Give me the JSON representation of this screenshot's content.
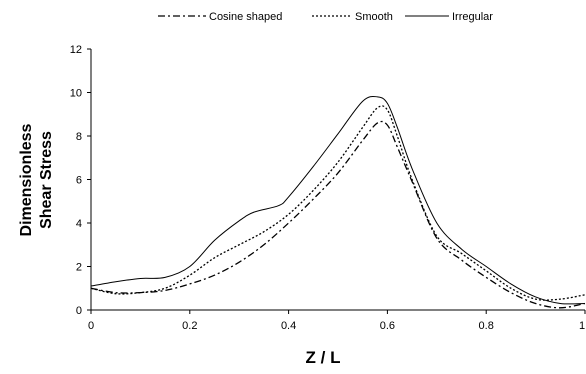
{
  "chart_data": {
    "type": "line",
    "xlabel": "Z / L",
    "ylabel_lines": [
      "Dimensionless",
      "Shear Stress"
    ],
    "xlim": [
      0,
      1
    ],
    "ylim": [
      0,
      12
    ],
    "x_ticks": [
      "0",
      "0.2",
      "0.4",
      "0.6",
      "0.8",
      "1"
    ],
    "y_ticks": [
      "0",
      "2",
      "4",
      "6",
      "8",
      "10",
      "12"
    ],
    "grid": false,
    "legend_position": "top",
    "series": [
      {
        "name": "Cosine shaped",
        "line_style": "dash-dot",
        "color": "#000000",
        "x": [
          0,
          0.05,
          0.1,
          0.15,
          0.2,
          0.25,
          0.3,
          0.35,
          0.4,
          0.45,
          0.5,
          0.55,
          0.58,
          0.6,
          0.62,
          0.65,
          0.7,
          0.75,
          0.8,
          0.85,
          0.9,
          0.95,
          1.0
        ],
        "y": [
          1.0,
          0.8,
          0.8,
          0.9,
          1.2,
          1.6,
          2.2,
          3.0,
          4.0,
          5.1,
          6.3,
          7.8,
          8.6,
          8.5,
          7.5,
          5.9,
          3.3,
          2.3,
          1.5,
          0.8,
          0.3,
          0.1,
          0.3
        ]
      },
      {
        "name": "Smooth",
        "line_style": "dotted",
        "color": "#000000",
        "x": [
          0,
          0.05,
          0.1,
          0.15,
          0.2,
          0.25,
          0.3,
          0.35,
          0.4,
          0.45,
          0.5,
          0.55,
          0.58,
          0.6,
          0.62,
          0.65,
          0.7,
          0.75,
          0.8,
          0.85,
          0.9,
          0.95,
          1.0
        ],
        "y": [
          1.0,
          0.75,
          0.8,
          1.0,
          1.6,
          2.4,
          3.0,
          3.6,
          4.4,
          5.5,
          6.8,
          8.4,
          9.3,
          9.2,
          8.0,
          6.0,
          3.4,
          2.6,
          1.8,
          1.0,
          0.5,
          0.5,
          0.7
        ]
      },
      {
        "name": "Irregular",
        "line_style": "solid",
        "color": "#000000",
        "x": [
          0,
          0.05,
          0.1,
          0.15,
          0.2,
          0.25,
          0.3,
          0.33,
          0.38,
          0.4,
          0.45,
          0.5,
          0.55,
          0.58,
          0.6,
          0.62,
          0.65,
          0.7,
          0.75,
          0.8,
          0.85,
          0.9,
          0.95,
          1.0
        ],
        "y": [
          1.1,
          1.3,
          1.45,
          1.5,
          2.0,
          3.2,
          4.1,
          4.5,
          4.8,
          5.2,
          6.6,
          8.1,
          9.6,
          9.8,
          9.5,
          8.4,
          6.5,
          4.0,
          2.8,
          2.0,
          1.2,
          0.6,
          0.3,
          0.3
        ]
      }
    ]
  }
}
